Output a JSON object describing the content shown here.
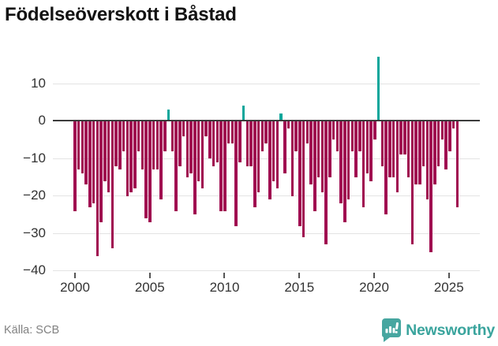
{
  "header": {
    "title": "Födelseöverskott i Båstad"
  },
  "chart_data": {
    "type": "bar",
    "title": "Födelseöverskott i Båstad",
    "frequency": "quarterly",
    "start": "2000-Q1",
    "end": "2025-Q3",
    "series": [
      {
        "name": "Födelseöverskott",
        "values": [
          -24,
          -13,
          -14,
          -17,
          -23,
          -22,
          -36,
          -27,
          -16,
          -19,
          -34,
          -12,
          -13,
          -8,
          -20,
          -19,
          -18,
          -8,
          -13,
          -26,
          -27,
          -13,
          -13,
          -21,
          -8,
          3,
          -8,
          -24,
          -12,
          -4,
          -15,
          -14,
          -25,
          -16,
          -18,
          -4,
          -10,
          -12,
          -11,
          -24,
          -24,
          -6,
          -6,
          -28,
          -11,
          4,
          -12,
          -12,
          -23,
          -19,
          -8,
          -6,
          -21,
          -16,
          -18,
          2,
          -14,
          -2,
          -20,
          -8,
          -28,
          -31,
          -6,
          -17,
          -24,
          -15,
          -19,
          -33,
          -15,
          -5,
          -8,
          -22,
          -27,
          -21,
          -8,
          -15,
          -8,
          -23,
          -14,
          -16,
          -5,
          17,
          -12,
          -25,
          -15,
          -15,
          -19,
          -9,
          -9,
          -15,
          -33,
          -17,
          -17,
          -12,
          -21,
          -35,
          -17,
          -12,
          -5,
          -13,
          -8,
          -2,
          -23
        ]
      }
    ],
    "ylim": [
      -40,
      17
    ],
    "ytick_values": [
      10,
      0,
      -10,
      -20,
      -30,
      -40
    ],
    "ytick_labels": [
      "10",
      "0",
      "−10",
      "−20",
      "−30",
      "−40"
    ],
    "xtick_years": [
      2000,
      2005,
      2010,
      2015,
      2020,
      2025
    ],
    "grid": "horizontal",
    "legend": "none",
    "colors": {
      "negative_bar": "#a00b50",
      "positive_bar": "#0ba69b",
      "zero_line": "#3c3c3c",
      "gridline": "#e3e3e3",
      "axis_text": "#333333"
    }
  },
  "footer": {
    "source": "Källa: SCB",
    "brand": {
      "name": "Newsworthy",
      "logo_color": "#47a6a0",
      "text_color": "#3aa49d"
    }
  }
}
